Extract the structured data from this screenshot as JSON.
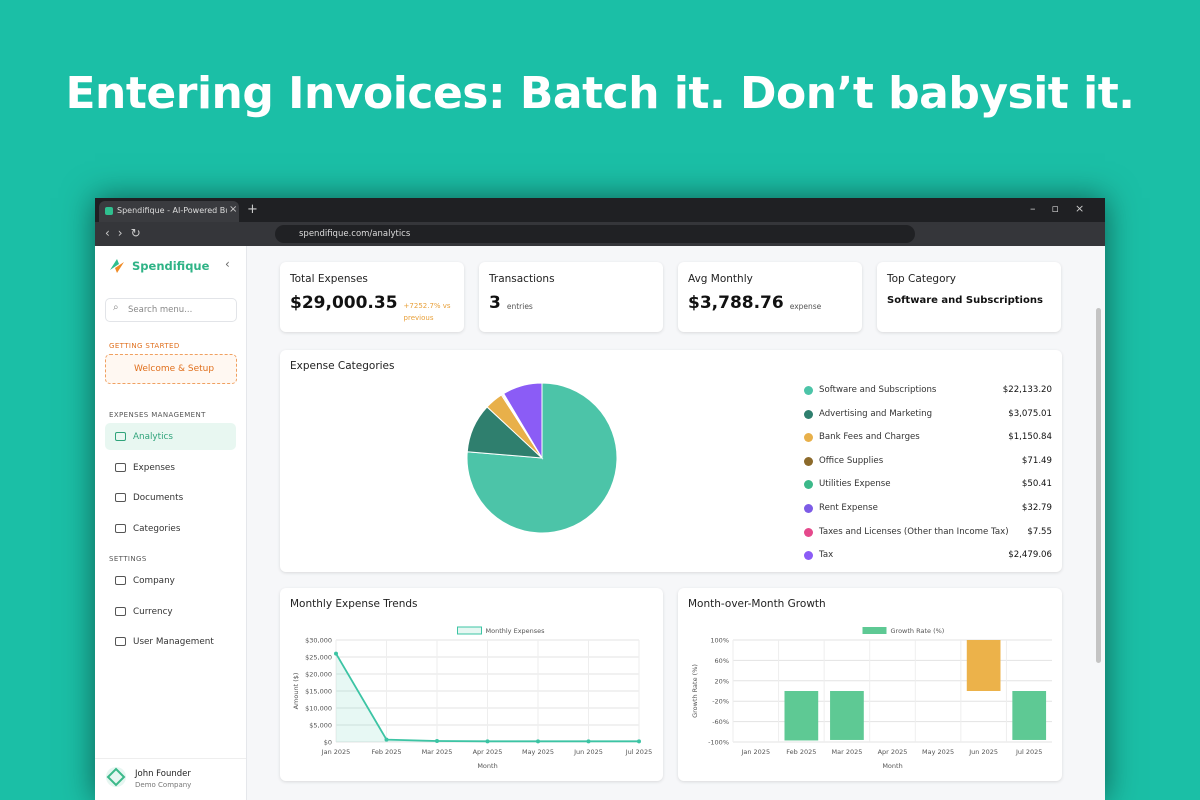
{
  "headline": "Entering Invoices: Batch it. Don’t babysit it.",
  "browser": {
    "tab_title": "Spendifique - AI-Powered Busin",
    "url": "spendifique.com/analytics"
  },
  "sidebar": {
    "brand": "Spendifique",
    "search_placeholder": "Search menu...",
    "sections": [
      {
        "title": "GETTING STARTED",
        "items": [
          "Welcome & Setup"
        ]
      },
      {
        "title": "EXPENSES MANAGEMENT",
        "items": [
          "Analytics",
          "Expenses",
          "Documents",
          "Categories"
        ]
      },
      {
        "title": "SETTINGS",
        "items": [
          "Company",
          "Currency",
          "User Management"
        ]
      }
    ],
    "user": {
      "name": "John Founder",
      "company": "Demo Company"
    }
  },
  "stats": [
    {
      "label": "Total Expenses",
      "value": "$29,000.35",
      "note": "+7252.7% vs previous"
    },
    {
      "label": "Transactions",
      "value": "3",
      "note": "entries"
    },
    {
      "label": "Avg Monthly",
      "value": "$3,788.76",
      "note": "expense"
    },
    {
      "label": "Top Category",
      "value": "Software and Subscriptions"
    }
  ],
  "chart_data": [
    {
      "type": "pie",
      "title": "Expense Categories",
      "categories": [
        "Software and Subscriptions",
        "Advertising and Marketing",
        "Bank Fees and Charges",
        "Office Supplies",
        "Utilities Expense",
        "Rent Expense",
        "Taxes and Licenses (Other than Income Tax)",
        "Tax"
      ],
      "values": [
        22133.2,
        3075.01,
        1150.84,
        71.49,
        50.41,
        32.79,
        7.55,
        2479.06
      ],
      "value_labels": [
        "$22,133.20",
        "$3,075.01",
        "$1,150.84",
        "$71.49",
        "$50.41",
        "$32.79",
        "$7.55",
        "$2,479.06"
      ],
      "colors": [
        "#4cc4a8",
        "#2f7f6e",
        "#e8b04a",
        "#8c6a2b",
        "#3cb98a",
        "#7d5ce6",
        "#e5498c",
        "#8b5cf6"
      ]
    },
    {
      "type": "line",
      "title": "Monthly Expense Trends",
      "x_label": "Month",
      "y_label": "Amount ($)",
      "categories": [
        "Jan 2025",
        "Feb 2025",
        "Mar 2025",
        "Apr 2025",
        "May 2025",
        "Jun 2025",
        "Jul 2025"
      ],
      "series": [
        {
          "name": "Monthly Expenses",
          "color": "#3cc4a4",
          "values": [
            26000,
            700,
            300,
            200,
            200,
            200,
            200
          ]
        }
      ],
      "ylim": [
        0,
        30000
      ],
      "yticks": [
        {
          "value": 0,
          "label": "$0"
        },
        {
          "value": 5000,
          "label": "$5,000"
        },
        {
          "value": 10000,
          "label": "$10,000"
        },
        {
          "value": 15000,
          "label": "$15,000"
        },
        {
          "value": 20000,
          "label": "$20,000"
        },
        {
          "value": 25000,
          "label": "$25,000"
        },
        {
          "value": 30000,
          "label": "$30,000"
        }
      ],
      "grid": true
    },
    {
      "type": "bar",
      "title": "Month-over-Month Growth",
      "x_label": "Month",
      "y_label": "Growth Rate (%)",
      "categories": [
        "Jan 2025",
        "Feb 2025",
        "Mar 2025",
        "Apr 2025",
        "May 2025",
        "Jun 2025",
        "Jul 2025"
      ],
      "series": [
        {
          "name": "Growth Rate (%)",
          "color": "#5ec994",
          "values": [
            null,
            -97,
            -96,
            0,
            0,
            100,
            -96
          ]
        }
      ],
      "colors": [
        "#5ec994",
        "#5ec994",
        "#5ec994",
        "#5ec994",
        "#5ec994",
        "#ecb24a",
        "#5ec994"
      ],
      "ylim": [
        -100,
        100
      ],
      "yticks": [
        {
          "value": 100,
          "label": "100%"
        },
        {
          "value": 60,
          "label": "60%"
        },
        {
          "value": 20,
          "label": "20%"
        },
        {
          "value": -20,
          "label": "-20%"
        },
        {
          "value": -60,
          "label": "-60%"
        },
        {
          "value": -100,
          "label": "-100%"
        }
      ],
      "grid": true
    }
  ]
}
